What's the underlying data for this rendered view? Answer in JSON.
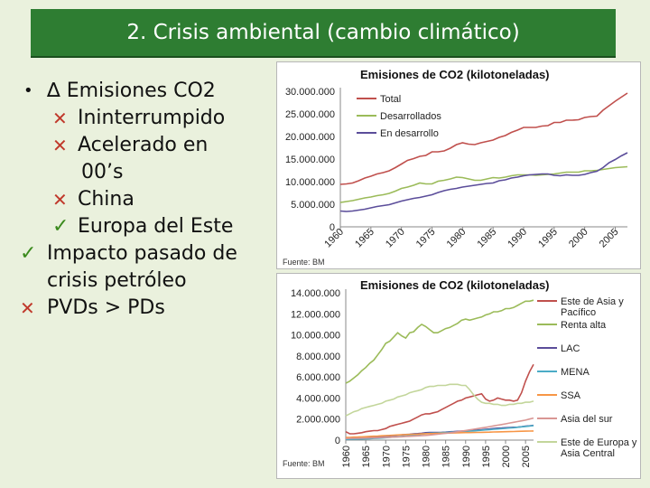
{
  "title": "2. Crisis ambiental (cambio climático)",
  "bullets": [
    {
      "marker": "•",
      "type": "dot",
      "text": "∆ Emisiones CO2"
    },
    {
      "marker": "✕",
      "type": "x",
      "text": "Ininterrumpido"
    },
    {
      "marker": "✕",
      "type": "x",
      "text": "Acelerado en",
      "cont": "00’s"
    },
    {
      "marker": "✕",
      "type": "x",
      "text": "China"
    },
    {
      "marker": "✓",
      "type": "check",
      "text": "Europa del Este"
    },
    {
      "marker": "✓",
      "type": "check",
      "text": "Impacto pasado de",
      "cont": "crisis petróleo"
    },
    {
      "marker": "✕",
      "type": "x",
      "text": "PVDs > PDs"
    }
  ],
  "chart_data": [
    {
      "type": "line",
      "title": "Emisiones de CO2 (kilotoneladas)",
      "source": "Fuente: BM",
      "x": [
        1960,
        1961,
        1962,
        1963,
        1964,
        1965,
        1966,
        1967,
        1968,
        1969,
        1970,
        1971,
        1972,
        1973,
        1974,
        1975,
        1976,
        1977,
        1978,
        1979,
        1980,
        1981,
        1982,
        1983,
        1984,
        1985,
        1986,
        1987,
        1988,
        1989,
        1990,
        1991,
        1992,
        1993,
        1994,
        1995,
        1996,
        1997,
        1998,
        1999,
        2000,
        2001,
        2002,
        2003,
        2004,
        2005,
        2006,
        2007
      ],
      "x_tick_labels": [
        "1960",
        "1965",
        "1970",
        "1975",
        "1980",
        "1985",
        "1990",
        "1995",
        "2000",
        "2005"
      ],
      "y_tick_labels": [
        "0",
        "5.000.000",
        "10.000.000",
        "15.000.000",
        "20.000.000",
        "25.000.000",
        "30.000.000"
      ],
      "ylim": [
        0,
        30000000
      ],
      "legend_position": "top-left",
      "series": [
        {
          "name": "Total",
          "color": "#c0504d",
          "values": [
            9400000,
            9500000,
            9700000,
            10200000,
            10800000,
            11200000,
            11700000,
            12000000,
            12400000,
            13100000,
            13900000,
            14700000,
            15100000,
            15600000,
            15800000,
            16600000,
            16600000,
            16800000,
            17400000,
            18200000,
            18600000,
            18300000,
            18200000,
            18600000,
            18900000,
            19200000,
            19800000,
            20200000,
            20900000,
            21400000,
            22000000,
            22000000,
            22000000,
            22300000,
            22400000,
            23100000,
            23100000,
            23600000,
            23600000,
            23700000,
            24200000,
            24400000,
            24500000,
            25800000,
            26800000,
            27800000,
            28700000,
            29600000
          ]
        },
        {
          "name": "Desarrollados",
          "color": "#9bbb59",
          "values": [
            5400000,
            5600000,
            5800000,
            6100000,
            6400000,
            6600000,
            6900000,
            7100000,
            7400000,
            7900000,
            8500000,
            8800000,
            9200000,
            9700000,
            9500000,
            9500000,
            10100000,
            10300000,
            10600000,
            11000000,
            10900000,
            10600000,
            10300000,
            10300000,
            10600000,
            10900000,
            10800000,
            11000000,
            11300000,
            11500000,
            11500000,
            11500000,
            11400000,
            11500000,
            11600000,
            11700000,
            11900000,
            12100000,
            12100000,
            12100000,
            12400000,
            12400000,
            12500000,
            12700000,
            12900000,
            13100000,
            13200000,
            13300000
          ]
        },
        {
          "name": "En desarrollo",
          "color": "#5b4d9a",
          "values": [
            3500000,
            3400000,
            3500000,
            3700000,
            3900000,
            4200000,
            4500000,
            4700000,
            4900000,
            5300000,
            5700000,
            6000000,
            6300000,
            6500000,
            6800000,
            7100000,
            7600000,
            8000000,
            8300000,
            8500000,
            8800000,
            9000000,
            9200000,
            9400000,
            9600000,
            9700000,
            10200000,
            10400000,
            10800000,
            11000000,
            11300000,
            11500000,
            11600000,
            11700000,
            11700000,
            11400000,
            11300000,
            11500000,
            11400000,
            11400000,
            11600000,
            12000000,
            12300000,
            13100000,
            14200000,
            14900000,
            15700000,
            16400000
          ]
        }
      ]
    },
    {
      "type": "line",
      "title": "Emisiones de CO2 (kilotoneladas)",
      "source": "Fuente: BM",
      "x": [
        1960,
        1961,
        1962,
        1963,
        1964,
        1965,
        1966,
        1967,
        1968,
        1969,
        1970,
        1971,
        1972,
        1973,
        1974,
        1975,
        1976,
        1977,
        1978,
        1979,
        1980,
        1981,
        1982,
        1983,
        1984,
        1985,
        1986,
        1987,
        1988,
        1989,
        1990,
        1991,
        1992,
        1993,
        1994,
        1995,
        1996,
        1997,
        1998,
        1999,
        2000,
        2001,
        2002,
        2003,
        2004,
        2005,
        2006,
        2007
      ],
      "x_tick_labels": [
        "1960",
        "1965",
        "1970",
        "1975",
        "1980",
        "1985",
        "1990",
        "1995",
        "2000",
        "2005"
      ],
      "y_tick_labels": [
        "0",
        "2.000.000",
        "4.000.000",
        "6.000.000",
        "8.000.000",
        "10.000.000",
        "12.000.000",
        "14.000.000"
      ],
      "ylim": [
        0,
        14000000
      ],
      "legend_position": "right",
      "series": [
        {
          "name": "Este de Asia y Pacífico",
          "color": "#c0504d",
          "values": [
            800000,
            600000,
            600000,
            650000,
            700000,
            800000,
            850000,
            900000,
            900000,
            1000000,
            1100000,
            1300000,
            1400000,
            1500000,
            1600000,
            1700000,
            1800000,
            2000000,
            2200000,
            2400000,
            2500000,
            2500000,
            2600000,
            2700000,
            2900000,
            3100000,
            3300000,
            3500000,
            3700000,
            3800000,
            4000000,
            4100000,
            4200000,
            4300000,
            4400000,
            3900000,
            3700000,
            3800000,
            4000000,
            3900000,
            3800000,
            3800000,
            3700000,
            3800000,
            4500000,
            5600000,
            6500000,
            7200000
          ]
        },
        {
          "name": "Renta alta",
          "color": "#9bbb59",
          "values": [
            5400000,
            5600000,
            5900000,
            6200000,
            6600000,
            6900000,
            7300000,
            7600000,
            8100000,
            8600000,
            9200000,
            9400000,
            9800000,
            10200000,
            9900000,
            9700000,
            10200000,
            10300000,
            10700000,
            11000000,
            10800000,
            10500000,
            10200000,
            10200000,
            10400000,
            10600000,
            10700000,
            10900000,
            11100000,
            11400000,
            11500000,
            11400000,
            11500000,
            11600000,
            11700000,
            11900000,
            12000000,
            12200000,
            12200000,
            12300000,
            12500000,
            12500000,
            12600000,
            12800000,
            13000000,
            13200000,
            13200000,
            13300000
          ]
        },
        {
          "name": "LAC",
          "color": "#5b4d9a",
          "values": [
            200000,
            220000,
            240000,
            250000,
            270000,
            280000,
            300000,
            320000,
            340000,
            360000,
            390000,
            410000,
            440000,
            470000,
            500000,
            530000,
            560000,
            590000,
            620000,
            650000,
            700000,
            720000,
            730000,
            730000,
            740000,
            760000,
            790000,
            810000,
            830000,
            860000,
            880000,
            900000,
            930000,
            960000,
            990000,
            1020000,
            1060000,
            1100000,
            1130000,
            1150000,
            1180000,
            1200000,
            1220000,
            1230000,
            1270000,
            1320000,
            1360000,
            1400000
          ]
        },
        {
          "name": "MENA",
          "color": "#4bacc6",
          "values": [
            70000,
            80000,
            90000,
            100000,
            110000,
            120000,
            140000,
            160000,
            180000,
            200000,
            230000,
            260000,
            290000,
            320000,
            350000,
            380000,
            420000,
            470000,
            520000,
            570000,
            620000,
            650000,
            670000,
            690000,
            710000,
            730000,
            750000,
            770000,
            790000,
            810000,
            830000,
            850000,
            880000,
            910000,
            940000,
            970000,
            1000000,
            1030000,
            1060000,
            1090000,
            1120000,
            1150000,
            1180000,
            1220000,
            1260000,
            1300000,
            1340000,
            1380000
          ]
        },
        {
          "name": "SSA",
          "color": "#f79646",
          "values": [
            250000,
            260000,
            280000,
            290000,
            310000,
            330000,
            350000,
            370000,
            390000,
            410000,
            430000,
            450000,
            470000,
            490000,
            510000,
            520000,
            540000,
            560000,
            570000,
            590000,
            610000,
            620000,
            630000,
            640000,
            650000,
            660000,
            670000,
            680000,
            690000,
            700000,
            710000,
            715000,
            720000,
            730000,
            740000,
            750000,
            760000,
            770000,
            780000,
            790000,
            800000,
            810000,
            820000,
            830000,
            840000,
            850000,
            860000,
            870000
          ]
        },
        {
          "name": "Asia del sur",
          "color": "#d99694",
          "values": [
            150000,
            160000,
            170000,
            180000,
            190000,
            200000,
            210000,
            220000,
            230000,
            245000,
            260000,
            275000,
            290000,
            305000,
            320000,
            340000,
            360000,
            380000,
            400000,
            420000,
            450000,
            480000,
            520000,
            560000,
            600000,
            640000,
            690000,
            740000,
            790000,
            850000,
            910000,
            970000,
            1030000,
            1090000,
            1150000,
            1210000,
            1280000,
            1350000,
            1420000,
            1480000,
            1550000,
            1620000,
            1690000,
            1760000,
            1830000,
            1900000,
            2000000,
            2100000
          ]
        },
        {
          "name": "Este de Europa y Asia Central",
          "color": "#c3d69b",
          "values": [
            2300000,
            2500000,
            2700000,
            2800000,
            3000000,
            3100000,
            3200000,
            3300000,
            3400000,
            3500000,
            3700000,
            3800000,
            3900000,
            4100000,
            4200000,
            4300000,
            4500000,
            4600000,
            4700000,
            4800000,
            5000000,
            5100000,
            5100000,
            5200000,
            5200000,
            5200000,
            5300000,
            5300000,
            5300000,
            5200000,
            5200000,
            4800000,
            4300000,
            3900000,
            3600000,
            3500000,
            3500000,
            3400000,
            3400000,
            3300000,
            3300000,
            3400000,
            3400000,
            3500000,
            3500000,
            3600000,
            3600000,
            3700000
          ]
        }
      ]
    }
  ]
}
